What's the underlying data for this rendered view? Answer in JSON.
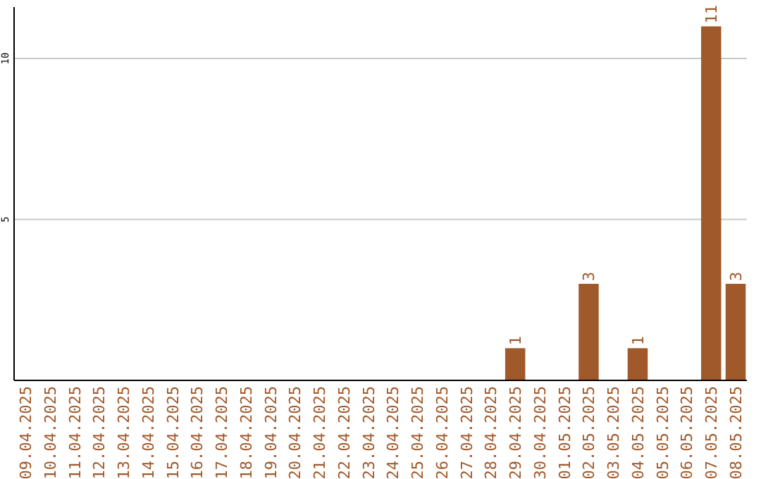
{
  "chart_data": {
    "type": "bar",
    "categories": [
      "09.04.2025",
      "10.04.2025",
      "11.04.2025",
      "12.04.2025",
      "13.04.2025",
      "14.04.2025",
      "15.04.2025",
      "16.04.2025",
      "17.04.2025",
      "18.04.2025",
      "19.04.2025",
      "20.04.2025",
      "21.04.2025",
      "22.04.2025",
      "23.04.2025",
      "24.04.2025",
      "25.04.2025",
      "26.04.2025",
      "27.04.2025",
      "28.04.2025",
      "29.04.2025",
      "30.04.2025",
      "01.05.2025",
      "02.05.2025",
      "03.05.2025",
      "04.05.2025",
      "05.05.2025",
      "06.05.2025",
      "07.05.2025",
      "08.05.2025"
    ],
    "values": [
      0,
      0,
      0,
      0,
      0,
      0,
      0,
      0,
      0,
      0,
      0,
      0,
      0,
      0,
      0,
      0,
      0,
      0,
      0,
      0,
      1,
      0,
      0,
      3,
      0,
      1,
      0,
      0,
      11,
      3
    ],
    "value_labels": [
      null,
      null,
      null,
      null,
      null,
      null,
      null,
      null,
      null,
      null,
      null,
      null,
      null,
      null,
      null,
      null,
      null,
      null,
      null,
      null,
      "1",
      null,
      null,
      "3",
      null,
      "1",
      null,
      null,
      "11",
      "3"
    ],
    "color": "#a0592a",
    "ylim": [
      0,
      11.6
    ],
    "yticks": [
      5,
      10
    ],
    "grid": "y"
  }
}
